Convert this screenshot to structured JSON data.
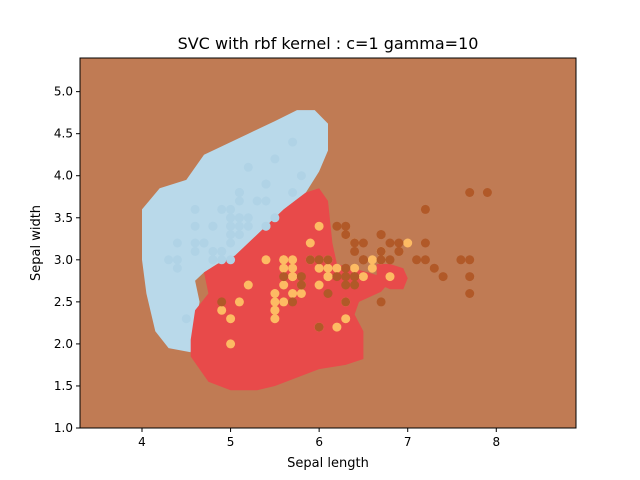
{
  "chart_data": {
    "type": "scatter",
    "title": "SVC with rbf kernel : c=1 gamma=10",
    "xlabel": "Sepal length",
    "ylabel": "Sepal width",
    "xlim": [
      3.3,
      8.9
    ],
    "ylim": [
      1.0,
      5.4
    ],
    "xticks": [
      "4",
      "5",
      "6",
      "7",
      "8"
    ],
    "yticks": [
      "1.0",
      "1.5",
      "2.0",
      "2.5",
      "3.0",
      "3.5",
      "4.0",
      "4.5",
      "5.0"
    ],
    "grid": false,
    "regions": [
      {
        "class": "setosa-region",
        "color": "#b9d9ea",
        "polygon": [
          [
            4.0,
            3.0
          ],
          [
            4.0,
            3.6
          ],
          [
            4.2,
            3.85
          ],
          [
            4.5,
            3.95
          ],
          [
            4.7,
            4.25
          ],
          [
            5.2,
            4.5
          ],
          [
            5.5,
            4.65
          ],
          [
            5.75,
            4.78
          ],
          [
            5.95,
            4.78
          ],
          [
            6.1,
            4.62
          ],
          [
            6.1,
            4.3
          ],
          [
            6.0,
            4.05
          ],
          [
            5.85,
            3.8
          ],
          [
            5.6,
            3.6
          ],
          [
            5.45,
            3.45
          ],
          [
            5.2,
            3.2
          ],
          [
            5.05,
            3.05
          ],
          [
            4.85,
            2.95
          ],
          [
            4.7,
            2.85
          ],
          [
            4.6,
            2.75
          ],
          [
            4.65,
            2.5
          ],
          [
            4.6,
            2.2
          ],
          [
            4.55,
            1.9
          ],
          [
            4.3,
            1.95
          ],
          [
            4.15,
            2.15
          ],
          [
            4.05,
            2.6
          ]
        ]
      },
      {
        "class": "versicolor-region",
        "color": "#e84a4a",
        "polygon": [
          [
            5.05,
            3.05
          ],
          [
            5.2,
            3.2
          ],
          [
            5.45,
            3.45
          ],
          [
            5.6,
            3.6
          ],
          [
            5.85,
            3.8
          ],
          [
            6.0,
            3.85
          ],
          [
            6.1,
            3.7
          ],
          [
            6.15,
            3.2
          ],
          [
            6.2,
            2.95
          ],
          [
            6.45,
            2.88
          ],
          [
            6.65,
            2.82
          ],
          [
            6.8,
            2.88
          ],
          [
            6.85,
            2.8
          ],
          [
            6.7,
            2.62
          ],
          [
            6.45,
            2.5
          ],
          [
            6.4,
            2.35
          ],
          [
            6.5,
            2.15
          ],
          [
            6.5,
            1.82
          ],
          [
            6.3,
            1.75
          ],
          [
            6.0,
            1.7
          ],
          [
            5.8,
            1.62
          ],
          [
            5.5,
            1.5
          ],
          [
            5.3,
            1.45
          ],
          [
            5.0,
            1.45
          ],
          [
            4.75,
            1.55
          ],
          [
            4.55,
            1.85
          ],
          [
            4.55,
            2.05
          ],
          [
            4.6,
            2.4
          ],
          [
            4.75,
            2.6
          ],
          [
            4.7,
            2.85
          ],
          [
            4.85,
            2.95
          ]
        ]
      },
      {
        "class": "versicolor-island",
        "color": "#e84a4a",
        "polygon": [
          [
            6.65,
            2.95
          ],
          [
            6.8,
            2.95
          ],
          [
            6.95,
            2.9
          ],
          [
            7.0,
            2.78
          ],
          [
            6.95,
            2.65
          ],
          [
            6.8,
            2.65
          ],
          [
            6.65,
            2.72
          ]
        ]
      }
    ],
    "background_color": "#c07b54",
    "series": [
      {
        "color": "#b0d3e6",
        "points": [
          [
            5.1,
            3.5
          ],
          [
            4.9,
            3.0
          ],
          [
            4.7,
            3.2
          ],
          [
            4.6,
            3.1
          ],
          [
            5.0,
            3.6
          ],
          [
            5.4,
            3.9
          ],
          [
            4.6,
            3.4
          ],
          [
            5.0,
            3.4
          ],
          [
            4.4,
            2.9
          ],
          [
            4.9,
            3.1
          ],
          [
            5.4,
            3.7
          ],
          [
            4.8,
            3.4
          ],
          [
            4.8,
            3.0
          ],
          [
            4.3,
            3.0
          ],
          [
            5.8,
            4.0
          ],
          [
            5.7,
            4.4
          ],
          [
            5.4,
            3.9
          ],
          [
            5.1,
            3.5
          ],
          [
            5.7,
            3.8
          ],
          [
            5.1,
            3.8
          ],
          [
            5.4,
            3.4
          ],
          [
            5.1,
            3.7
          ],
          [
            4.6,
            3.6
          ],
          [
            5.1,
            3.3
          ],
          [
            4.8,
            3.4
          ],
          [
            5.0,
            3.0
          ],
          [
            5.0,
            3.4
          ],
          [
            5.2,
            3.5
          ],
          [
            5.2,
            3.4
          ],
          [
            4.7,
            3.2
          ],
          [
            4.8,
            3.1
          ],
          [
            5.4,
            3.4
          ],
          [
            5.2,
            4.1
          ],
          [
            5.5,
            4.2
          ],
          [
            4.9,
            3.1
          ],
          [
            5.0,
            3.2
          ],
          [
            5.5,
            3.5
          ],
          [
            4.9,
            3.6
          ],
          [
            4.4,
            3.0
          ],
          [
            5.1,
            3.4
          ],
          [
            5.0,
            3.5
          ],
          [
            4.5,
            2.3
          ],
          [
            4.4,
            3.2
          ],
          [
            5.0,
            3.5
          ],
          [
            5.1,
            3.8
          ],
          [
            4.8,
            3.0
          ],
          [
            5.1,
            3.8
          ],
          [
            4.6,
            3.2
          ],
          [
            5.3,
            3.7
          ],
          [
            5.0,
            3.3
          ]
        ]
      },
      {
        "color": "#fdbb63",
        "points": [
          [
            7.0,
            3.2
          ],
          [
            6.4,
            3.2
          ],
          [
            6.9,
            3.1
          ],
          [
            5.5,
            2.3
          ],
          [
            6.5,
            2.8
          ],
          [
            5.7,
            2.8
          ],
          [
            6.3,
            3.3
          ],
          [
            4.9,
            2.4
          ],
          [
            6.6,
            2.9
          ],
          [
            5.2,
            2.7
          ],
          [
            5.0,
            2.0
          ],
          [
            5.9,
            3.0
          ],
          [
            6.0,
            2.2
          ],
          [
            6.1,
            2.9
          ],
          [
            5.6,
            2.9
          ],
          [
            6.7,
            3.1
          ],
          [
            5.6,
            3.0
          ],
          [
            5.8,
            2.7
          ],
          [
            6.2,
            2.2
          ],
          [
            5.6,
            2.5
          ],
          [
            5.9,
            3.2
          ],
          [
            6.1,
            2.8
          ],
          [
            6.3,
            2.5
          ],
          [
            6.1,
            2.8
          ],
          [
            6.4,
            2.9
          ],
          [
            6.6,
            3.0
          ],
          [
            6.8,
            2.8
          ],
          [
            6.7,
            3.0
          ],
          [
            6.0,
            2.9
          ],
          [
            5.7,
            2.6
          ],
          [
            5.5,
            2.4
          ],
          [
            5.5,
            2.4
          ],
          [
            5.8,
            2.7
          ],
          [
            6.0,
            2.7
          ],
          [
            5.4,
            3.0
          ],
          [
            6.0,
            3.4
          ],
          [
            6.7,
            3.1
          ],
          [
            6.3,
            2.3
          ],
          [
            5.6,
            3.0
          ],
          [
            5.5,
            2.5
          ],
          [
            5.5,
            2.6
          ],
          [
            6.1,
            3.0
          ],
          [
            5.8,
            2.6
          ],
          [
            5.0,
            2.3
          ],
          [
            5.6,
            2.7
          ],
          [
            5.7,
            3.0
          ],
          [
            5.7,
            2.9
          ],
          [
            6.2,
            2.9
          ],
          [
            5.1,
            2.5
          ],
          [
            5.7,
            2.8
          ]
        ]
      },
      {
        "color": "#b15928",
        "points": [
          [
            6.3,
            3.3
          ],
          [
            5.8,
            2.7
          ],
          [
            7.1,
            3.0
          ],
          [
            6.3,
            2.9
          ],
          [
            6.5,
            3.0
          ],
          [
            7.6,
            3.0
          ],
          [
            4.9,
            2.5
          ],
          [
            7.3,
            2.9
          ],
          [
            6.7,
            2.5
          ],
          [
            7.2,
            3.6
          ],
          [
            6.5,
            3.2
          ],
          [
            6.4,
            2.7
          ],
          [
            6.8,
            3.0
          ],
          [
            5.7,
            2.5
          ],
          [
            5.8,
            2.8
          ],
          [
            6.4,
            3.2
          ],
          [
            6.5,
            3.0
          ],
          [
            7.7,
            3.8
          ],
          [
            7.7,
            2.6
          ],
          [
            6.0,
            2.2
          ],
          [
            6.9,
            3.2
          ],
          [
            5.6,
            2.8
          ],
          [
            7.7,
            2.8
          ],
          [
            6.3,
            2.7
          ],
          [
            6.7,
            3.3
          ],
          [
            7.2,
            3.2
          ],
          [
            6.2,
            2.8
          ],
          [
            6.1,
            3.0
          ],
          [
            6.4,
            2.8
          ],
          [
            7.2,
            3.0
          ],
          [
            7.4,
            2.8
          ],
          [
            7.9,
            3.8
          ],
          [
            6.4,
            2.8
          ],
          [
            6.3,
            2.8
          ],
          [
            6.1,
            2.6
          ],
          [
            7.7,
            3.0
          ],
          [
            6.3,
            3.4
          ],
          [
            6.4,
            3.1
          ],
          [
            6.0,
            3.0
          ],
          [
            6.9,
            3.1
          ],
          [
            6.7,
            3.1
          ],
          [
            6.9,
            3.1
          ],
          [
            5.8,
            2.7
          ],
          [
            6.8,
            3.2
          ],
          [
            6.7,
            3.3
          ],
          [
            6.7,
            3.0
          ],
          [
            6.3,
            2.5
          ],
          [
            6.5,
            3.0
          ],
          [
            6.2,
            3.4
          ],
          [
            5.9,
            3.0
          ]
        ]
      }
    ]
  }
}
